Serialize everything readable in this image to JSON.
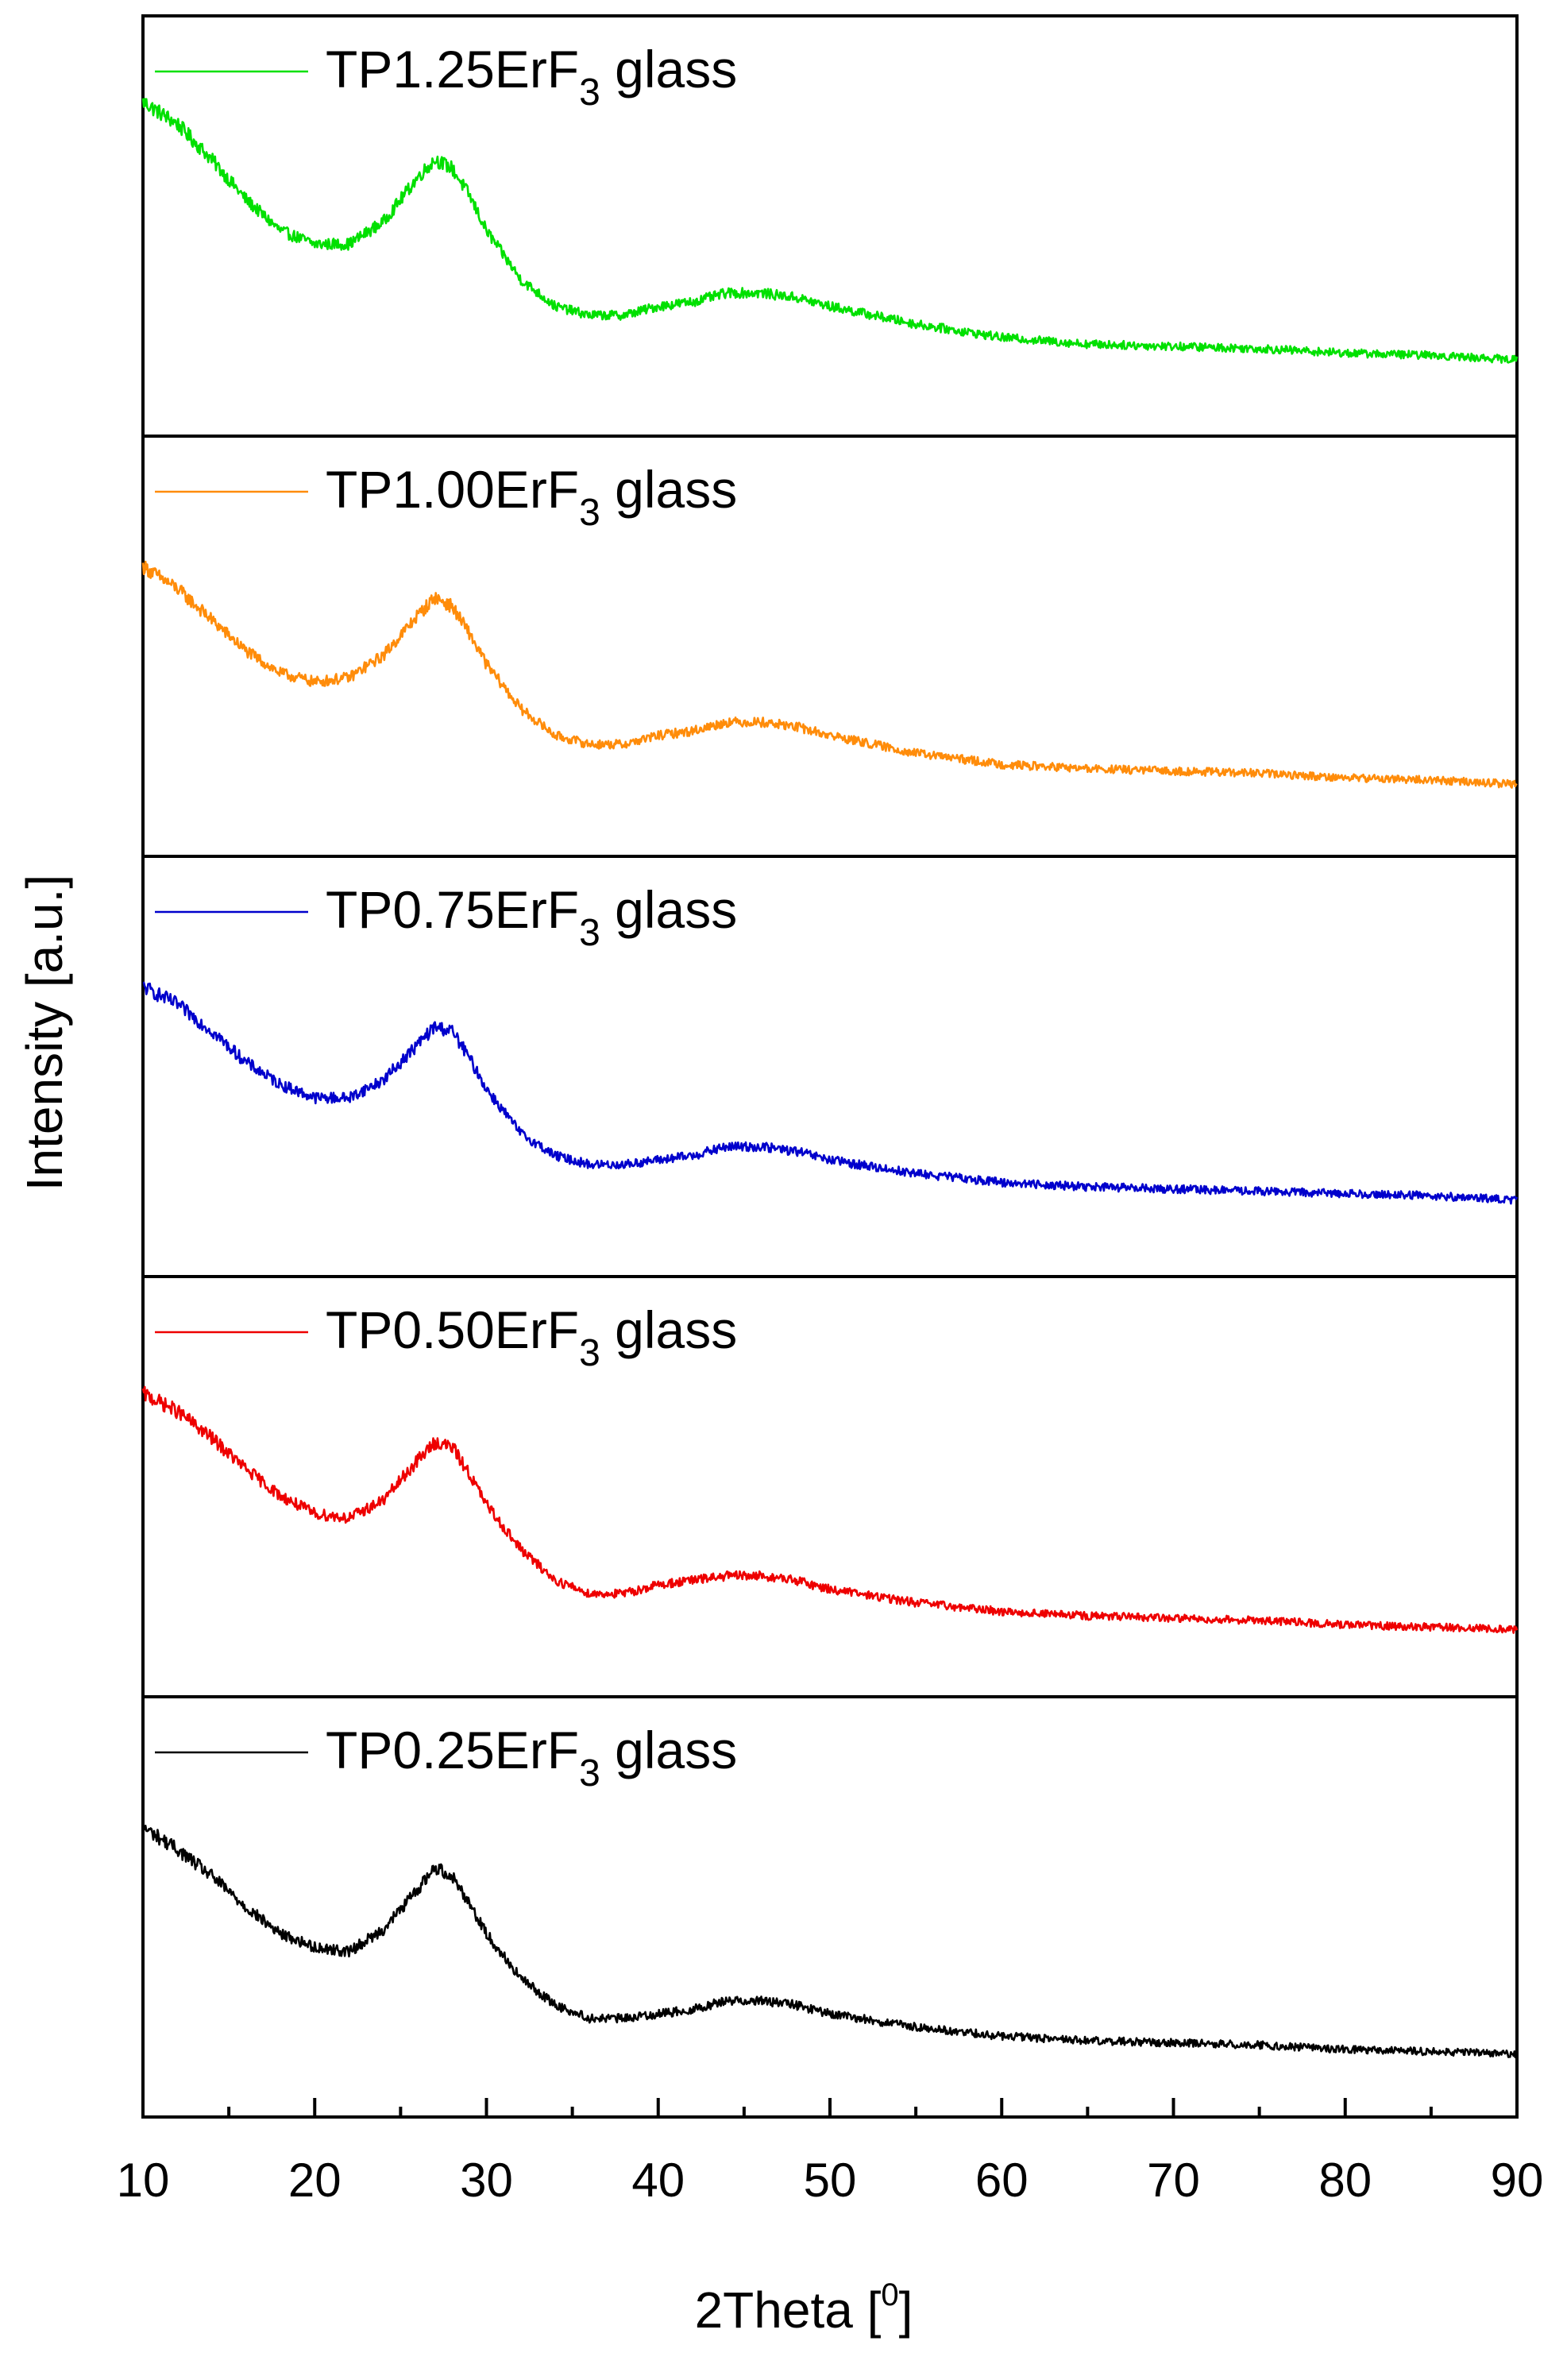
{
  "chart_data": {
    "type": "line",
    "title": "",
    "xlabel": "2Theta [",
    "xlabel_sup": "0",
    "xlabel_close": "]",
    "ylabel": "Intensity [a.u.]",
    "xlim": [
      10,
      90
    ],
    "ylim": [
      0,
      1
    ],
    "x_ticks": [
      10,
      20,
      30,
      40,
      50,
      60,
      70,
      80,
      90
    ],
    "x_minor_step": 5,
    "grid": false,
    "legend_position": "top-left of each panel",
    "noise_amplitude": 0.035,
    "series": [
      {
        "name": "TP1.25ErF3 glass",
        "label_main": "TP1.25ErF",
        "label_sub": "3",
        "label_tail": " glass",
        "color": "#00e000",
        "x": [
          10,
          12,
          14,
          16,
          18,
          20,
          22,
          24,
          26,
          27,
          28,
          29,
          30,
          32,
          34,
          36,
          38,
          40,
          42,
          44,
          46,
          48,
          50,
          55,
          60,
          65,
          70,
          75,
          80,
          85,
          90
        ],
        "y": [
          0.7,
          0.65,
          0.57,
          0.48,
          0.41,
          0.38,
          0.38,
          0.43,
          0.53,
          0.57,
          0.55,
          0.49,
          0.41,
          0.3,
          0.24,
          0.22,
          0.22,
          0.24,
          0.25,
          0.27,
          0.27,
          0.26,
          0.24,
          0.2,
          0.17,
          0.155,
          0.15,
          0.145,
          0.135,
          0.13,
          0.12
        ]
      },
      {
        "name": "TP1.00ErF3 glass",
        "label_main": "TP1.00ErF",
        "label_sub": "3",
        "label_tail": " glass",
        "color": "#ff8c0a",
        "x": [
          10,
          12,
          14,
          16,
          18,
          20,
          22,
          24,
          26,
          27,
          28,
          29,
          30,
          32,
          34,
          36,
          38,
          40,
          42,
          44,
          46,
          48,
          50,
          55,
          60,
          65,
          70,
          75,
          80,
          85,
          90
        ],
        "y": [
          0.6,
          0.55,
          0.48,
          0.41,
          0.36,
          0.34,
          0.35,
          0.4,
          0.49,
          0.53,
          0.51,
          0.45,
          0.38,
          0.28,
          0.22,
          0.2,
          0.2,
          0.22,
          0.23,
          0.25,
          0.25,
          0.24,
          0.22,
          0.18,
          0.155,
          0.145,
          0.14,
          0.135,
          0.125,
          0.12,
          0.11
        ]
      },
      {
        "name": "TP0.75ErF3 glass",
        "label_main": "TP0.75ErF",
        "label_sub": "3",
        "label_tail": " glass",
        "color": "#0000cc",
        "x": [
          10,
          12,
          14,
          16,
          18,
          20,
          22,
          24,
          26,
          27,
          28,
          29,
          30,
          32,
          34,
          36,
          38,
          40,
          42,
          44,
          46,
          48,
          50,
          55,
          60,
          65,
          70,
          75,
          80,
          85,
          90
        ],
        "y": [
          0.6,
          0.56,
          0.5,
          0.43,
          0.38,
          0.35,
          0.35,
          0.39,
          0.47,
          0.51,
          0.5,
          0.44,
          0.37,
          0.27,
          0.22,
          0.2,
          0.2,
          0.21,
          0.22,
          0.24,
          0.24,
          0.23,
          0.21,
          0.18,
          0.16,
          0.15,
          0.145,
          0.14,
          0.135,
          0.13,
          0.12
        ]
      },
      {
        "name": "TP0.50ErF3 glass",
        "label_main": "TP0.50ErF",
        "label_sub": "3",
        "label_tail": " glass",
        "color": "#ee0000",
        "x": [
          10,
          12,
          14,
          16,
          18,
          20,
          22,
          24,
          26,
          27,
          28,
          29,
          30,
          32,
          34,
          36,
          38,
          40,
          42,
          44,
          46,
          48,
          50,
          55,
          60,
          65,
          70,
          75,
          80,
          85,
          90
        ],
        "y": [
          0.63,
          0.59,
          0.53,
          0.46,
          0.4,
          0.36,
          0.35,
          0.39,
          0.48,
          0.52,
          0.51,
          0.45,
          0.38,
          0.28,
          0.21,
          0.18,
          0.18,
          0.2,
          0.21,
          0.22,
          0.22,
          0.21,
          0.19,
          0.16,
          0.14,
          0.13,
          0.125,
          0.12,
          0.11,
          0.105,
          0.1
        ]
      },
      {
        "name": "TP0.25ErF3 glass",
        "label_main": "TP0.25ErF",
        "label_sub": "3",
        "label_tail": " glass",
        "color": "#000000",
        "x": [
          10,
          12,
          14,
          16,
          18,
          20,
          22,
          24,
          26,
          27,
          28,
          29,
          30,
          32,
          34,
          36,
          38,
          40,
          42,
          44,
          46,
          48,
          50,
          55,
          60,
          65,
          70,
          75,
          80,
          85,
          90
        ],
        "y": [
          0.6,
          0.55,
          0.49,
          0.42,
          0.36,
          0.33,
          0.32,
          0.37,
          0.46,
          0.51,
          0.49,
          0.43,
          0.36,
          0.26,
          0.2,
          0.17,
          0.17,
          0.18,
          0.19,
          0.21,
          0.21,
          0.2,
          0.18,
          0.15,
          0.13,
          0.12,
          0.115,
          0.11,
          0.1,
          0.095,
          0.09
        ]
      }
    ]
  }
}
